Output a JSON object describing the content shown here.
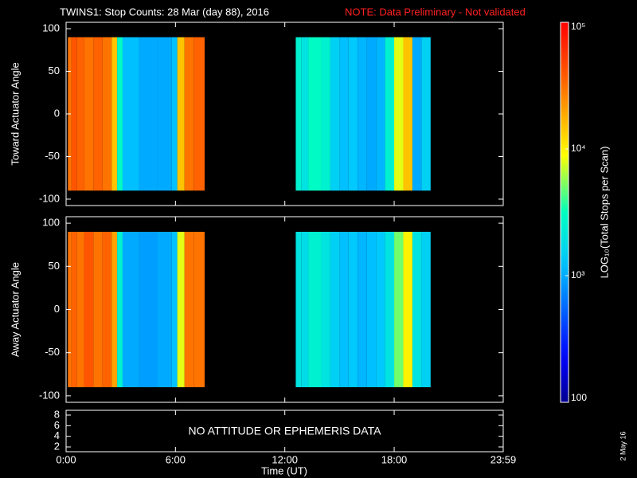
{
  "title": "TWINS1: Stop Counts: 28 Mar (day  88), 2016",
  "note": "NOTE: Data Preliminary - Not validated",
  "date": "2 May 16",
  "xaxis": {
    "label": "Time (UT)",
    "xlim": [
      0,
      23.9833
    ],
    "xticks": [
      {
        "value": 0,
        "label": "0:00"
      },
      {
        "value": 6,
        "label": "6:00"
      },
      {
        "value": 12,
        "label": "12:00"
      },
      {
        "value": 18,
        "label": "18:00"
      },
      {
        "value": 23.9833,
        "label": "23:59"
      }
    ]
  },
  "colorbar": {
    "label": "LOG₁₀(Total Stops per Scan)",
    "log": true,
    "ylim": [
      100,
      100000
    ],
    "yticks": [
      100,
      {
        "value": 1000,
        "label": "10³"
      },
      {
        "value": 10000,
        "label": "10⁴"
      },
      {
        "value": 100000,
        "label": "10⁵"
      }
    ]
  },
  "chart_data": [
    {
      "type": "heatmap",
      "ylabel": "Toward Actuator Angle",
      "ylim": [
        -107.5,
        107.5
      ],
      "yticks": [
        -100,
        -50,
        0,
        50,
        100
      ],
      "bin_y": [
        -90,
        90
      ],
      "blocks": [
        {
          "bins": [
            0.1,
            0.3,
            0.6,
            1.0,
            1.5,
            2.0,
            2.5,
            2.8,
            3.1,
            4.0,
            5.0,
            5.8,
            6.1,
            6.5,
            7.0,
            7.6
          ],
          "values": [
            30000,
            40000,
            35000,
            30000,
            35000,
            30000,
            15000,
            3000,
            1200,
            1000,
            1000,
            1200,
            15000,
            30000,
            35000
          ]
        },
        {
          "bins": [
            12.6,
            12.9,
            13.3,
            14.0,
            14.5,
            15.0,
            15.5,
            16.0,
            16.5,
            17.0,
            17.5,
            18.0,
            18.5,
            19.0,
            19.5,
            20.0
          ],
          "values": [
            2500,
            2000,
            3000,
            2500,
            1500,
            1200,
            1300,
            1100,
            1000,
            1100,
            2500,
            8000,
            15000,
            1000,
            1500
          ]
        }
      ]
    },
    {
      "type": "heatmap",
      "ylabel": "Away Actuator Angle",
      "ylim": [
        -107.5,
        107.5
      ],
      "yticks": [
        -100,
        -50,
        0,
        50,
        100
      ],
      "bin_y": [
        -90,
        90
      ],
      "blocks": [
        {
          "bins": [
            0.1,
            0.3,
            0.6,
            1.0,
            1.5,
            2.0,
            2.5,
            2.8,
            3.1,
            4.0,
            5.0,
            5.8,
            6.1,
            6.5,
            7.0,
            7.6
          ],
          "values": [
            30000,
            35000,
            30000,
            40000,
            30000,
            35000,
            20000,
            2500,
            1000,
            900,
            1000,
            1200,
            8000,
            30000,
            30000
          ]
        },
        {
          "bins": [
            12.6,
            12.9,
            13.3,
            14.0,
            14.5,
            15.0,
            15.5,
            16.0,
            16.5,
            17.0,
            17.5,
            18.0,
            18.5,
            19.0,
            19.5,
            20.0
          ],
          "values": [
            2000,
            1800,
            2500,
            2000,
            1500,
            1200,
            1300,
            1100,
            1200,
            1300,
            2000,
            5000,
            10000,
            2000,
            1500
          ]
        }
      ]
    },
    {
      "type": "text",
      "text": "NO ATTITUDE OR EPHEMERIS DATA",
      "ylim": [
        1.1,
        8.9
      ],
      "yticks": [
        2,
        4,
        6,
        8
      ]
    }
  ]
}
